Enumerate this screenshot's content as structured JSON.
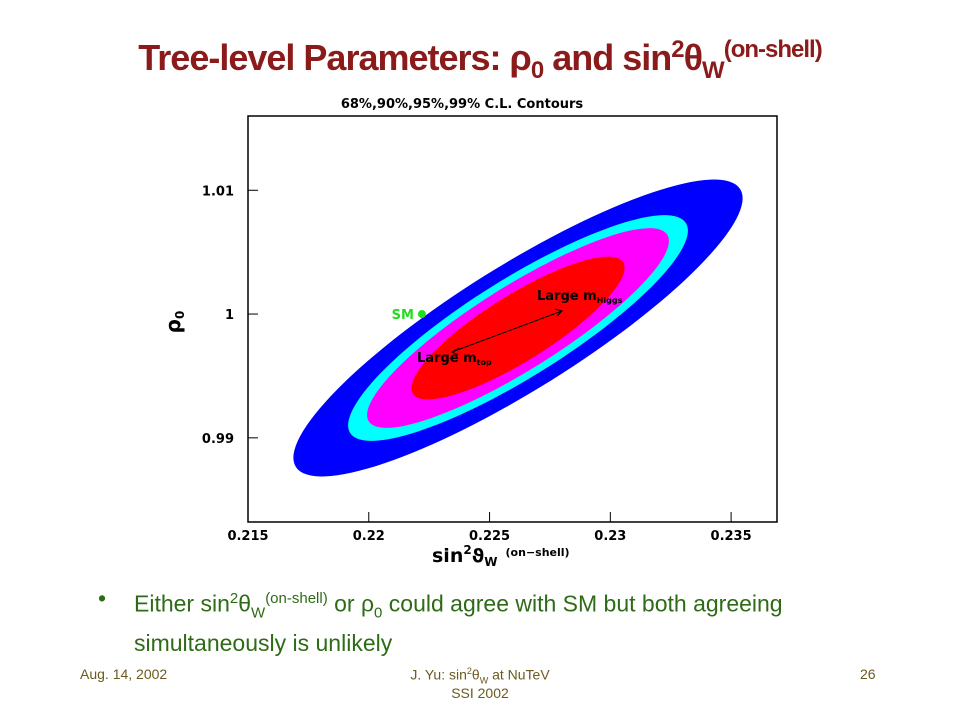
{
  "title": {
    "t1": "Tree-level Parameters: ",
    "rho": "ρ",
    "rho_sub": "0",
    "t2": " and sin",
    "sup": "2",
    "theta": "θ",
    "sub": "W",
    "sup2": "(on-shell)"
  },
  "plot": {
    "title": "68%,90%,95%,99% C.L. Contours",
    "xlim": [
      0.215,
      0.2369
    ],
    "xticks": [
      0.215,
      0.22,
      0.225,
      0.23,
      0.235
    ],
    "ylim": [
      0.9832,
      1.016
    ],
    "yticks": [
      0.99,
      1,
      1.01
    ],
    "ylabel": {
      "rho": "ρ",
      "sub": "0"
    },
    "xlabel": {
      "t": "sin",
      "sup": "2",
      "theta": "ϑ",
      "sub": "W",
      "note": "(on−shell)"
    },
    "sm": {
      "label": "SM",
      "x": 0.2222,
      "y": 1.0
    },
    "higgs": {
      "t": "Large m",
      "sub": "Higgs"
    },
    "top": {
      "t": "Large m",
      "sub": "top"
    }
  },
  "bullet": {
    "t1": "Either sin",
    "sup": "2",
    "theta": "θ",
    "sub": "W",
    "sup2": "(on-shell)",
    "t2": " or ",
    "rho": "ρ",
    "rho_sub": "0",
    "t3": " could agree with SM but both agreeing simultaneously is unlikely"
  },
  "footer": {
    "date": "Aug. 14, 2002",
    "center1": "J. Yu: sin",
    "c_sup": "2",
    "c_theta": "θ",
    "c_sub": "W",
    "center2": " at NuTeV",
    "center3": "SSI 2002",
    "page": "26"
  }
}
